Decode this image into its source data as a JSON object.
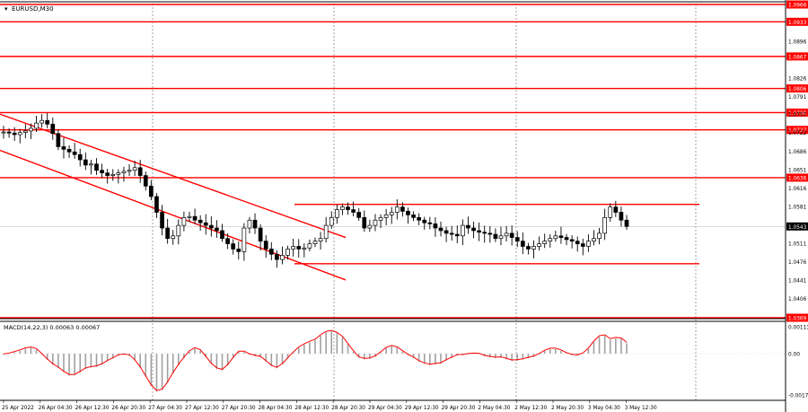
{
  "window": {
    "symbol_label": "EURUSD,M30",
    "indicator_label": "MACD(14,22,3) 0.00063 0.00067"
  },
  "colors": {
    "background": "#ffffff",
    "grid": "#8c8c8c",
    "candle": "#000000",
    "levels": "#ff0000",
    "price_marker_bg": "#ff0000",
    "current_price_bg": "#000000",
    "macd_hist": "#a0a0a0",
    "macd_signal": "#ff0000"
  },
  "price_axis": {
    "ticks": [
      "1.0966",
      "1.0933",
      "1.0896",
      "1.0867",
      "1.0826",
      "1.0806",
      "1.0791",
      "1.0760",
      "1.0757",
      "1.0727",
      "1.0722",
      "1.0686",
      "1.0651",
      "1.0636",
      "1.0616",
      "1.0581",
      "1.0546",
      "1.0511",
      "1.0476",
      "1.0441",
      "1.0406",
      "1.0369"
    ],
    "current_price": "1.0543"
  },
  "time_axis": {
    "labels": [
      "25 Apr 2022",
      "26 Apr 04:30",
      "26 Apr 12:30",
      "26 Apr 20:30",
      "27 Apr 04:30",
      "27 Apr 12:30",
      "27 Apr 20:30",
      "28 Apr 04:30",
      "28 Apr 12:30",
      "28 Apr 20:30",
      "29 Apr 04:30",
      "29 Apr 12:30",
      "29 Apr 20:30",
      "2 May 04:30",
      "2 May 12:30",
      "2 May 20:30",
      "3 May 04:30",
      "3 May 12:30"
    ]
  },
  "macd_axis": {
    "ticks": [
      "0.00113",
      "0.00",
      "-0.00178"
    ]
  },
  "chart_data": {
    "type": "candlestick",
    "symbol": "EURUSD",
    "timeframe": "M30",
    "support_resistance_levels": [
      1.0966,
      1.0933,
      1.0867,
      1.0806,
      1.076,
      1.0727,
      1.0636,
      1.0369
    ],
    "range_channel": {
      "upper": 1.0585,
      "lower": 1.0472
    },
    "descending_channel": [
      {
        "from": {
          "time": "25 Apr 2022",
          "price": 1.0757
        },
        "to": {
          "time": "28 Apr 20:30",
          "price": 1.0522
        }
      },
      {
        "from": {
          "time": "25 Apr 2022",
          "price": 1.0688
        },
        "to": {
          "time": "28 Apr 20:30",
          "price": 1.0441
        }
      }
    ],
    "close_series": [
      1.0723,
      1.0721,
      1.0718,
      1.0722,
      1.0725,
      1.073,
      1.074,
      1.0745,
      1.0738,
      1.072,
      1.0695,
      1.069,
      1.0685,
      1.068,
      1.067,
      1.066,
      1.0662,
      1.065,
      1.0645,
      1.064,
      1.0642,
      1.0645,
      1.0648,
      1.065,
      1.0655,
      1.064,
      1.062,
      1.06,
      1.057,
      1.054,
      1.052,
      1.0525,
      1.0545,
      1.056,
      1.0562,
      1.0555,
      1.055,
      1.0545,
      1.054,
      1.0535,
      1.052,
      1.051,
      1.05,
      1.0495,
      1.054,
      1.0555,
      1.054,
      1.0515,
      1.05,
      1.049,
      1.048,
      1.0488,
      1.05,
      1.0505,
      1.05,
      1.0502,
      1.051,
      1.0515,
      1.052,
      1.0545,
      1.056,
      1.0575,
      1.058,
      1.0575,
      1.057,
      1.056,
      1.054,
      1.0545,
      1.0555,
      1.056,
      1.0565,
      1.057,
      1.058,
      1.0572,
      1.0565,
      1.056,
      1.0555,
      1.055,
      1.0548,
      1.054,
      1.0535,
      1.053,
      1.0528,
      1.0525,
      1.0545,
      1.054,
      1.0535,
      1.0532,
      1.053,
      1.0528,
      1.052,
      1.0525,
      1.053,
      1.0522,
      1.0515,
      1.0505,
      1.05,
      1.0505,
      1.051,
      1.0515,
      1.052,
      1.0525,
      1.0522,
      1.0518,
      1.0515,
      1.051,
      1.0505,
      1.0515,
      1.052,
      1.053,
      1.056,
      1.058,
      1.057,
      1.0555,
      1.0543
    ]
  }
}
